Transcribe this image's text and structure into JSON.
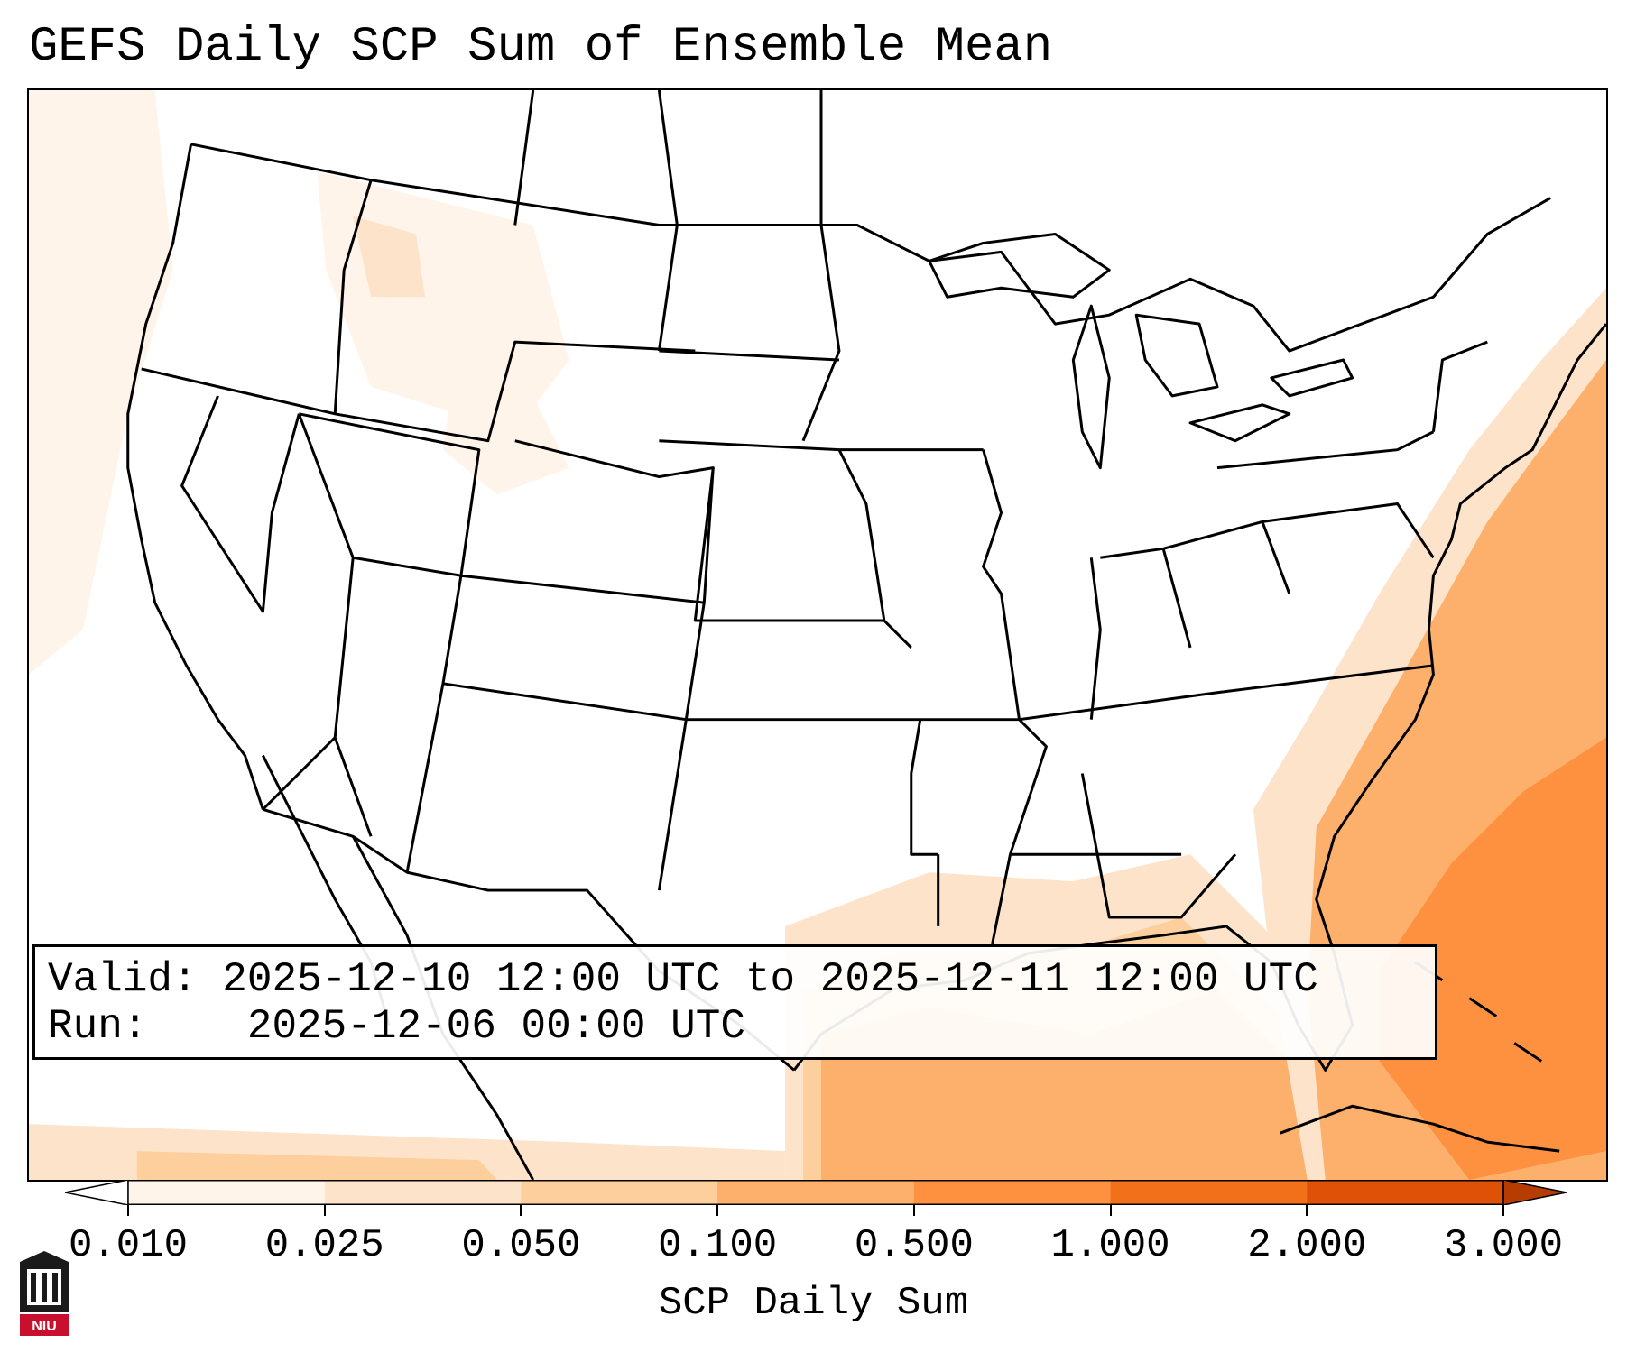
{
  "title": "GEFS Daily SCP Sum of Ensemble Mean",
  "info": {
    "valid_label": "Valid:",
    "valid_value": "2025-12-10 12:00 UTC to 2025-12-11 12:00 UTC",
    "run_label": "Run:",
    "run_value": "2025-12-06 00:00 UTC"
  },
  "colorbar": {
    "label": "SCP Daily Sum",
    "ticks": [
      "0.010",
      "0.025",
      "0.050",
      "0.100",
      "0.500",
      "1.000",
      "2.000",
      "3.000"
    ],
    "colors": [
      "#fff4ea",
      "#fee3cb",
      "#fdcf9c",
      "#fdb06c",
      "#fd9140",
      "#f3701b",
      "#de5106",
      "#b63c02"
    ],
    "extend": "both"
  },
  "logo": {
    "text": "NIU"
  }
}
